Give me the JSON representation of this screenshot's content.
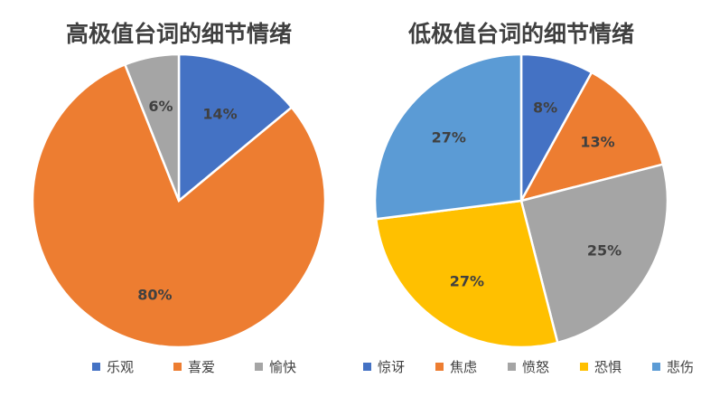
{
  "chart_data": [
    {
      "type": "pie",
      "title": "高极值台词的细节情绪",
      "categories": [
        "乐观",
        "喜爱",
        "愉快"
      ],
      "values": [
        14,
        80,
        6
      ],
      "data_labels": [
        "14%",
        "80%",
        "6%"
      ],
      "colors": [
        "#4472C4",
        "#ED7D31",
        "#A5A5A5"
      ],
      "legend_position": "bottom"
    },
    {
      "type": "pie",
      "title": "低极值台词的细节情绪",
      "categories": [
        "惊讶",
        "焦虑",
        "愤怒",
        "恐惧",
        "悲伤"
      ],
      "values": [
        8,
        13,
        25,
        27,
        27
      ],
      "data_labels": [
        "8%",
        "13%",
        "25%",
        "27%",
        "27%"
      ],
      "colors": [
        "#4472C4",
        "#ED7D31",
        "#A5A5A5",
        "#FFC000",
        "#5B9BD5"
      ],
      "legend_position": "bottom"
    }
  ]
}
